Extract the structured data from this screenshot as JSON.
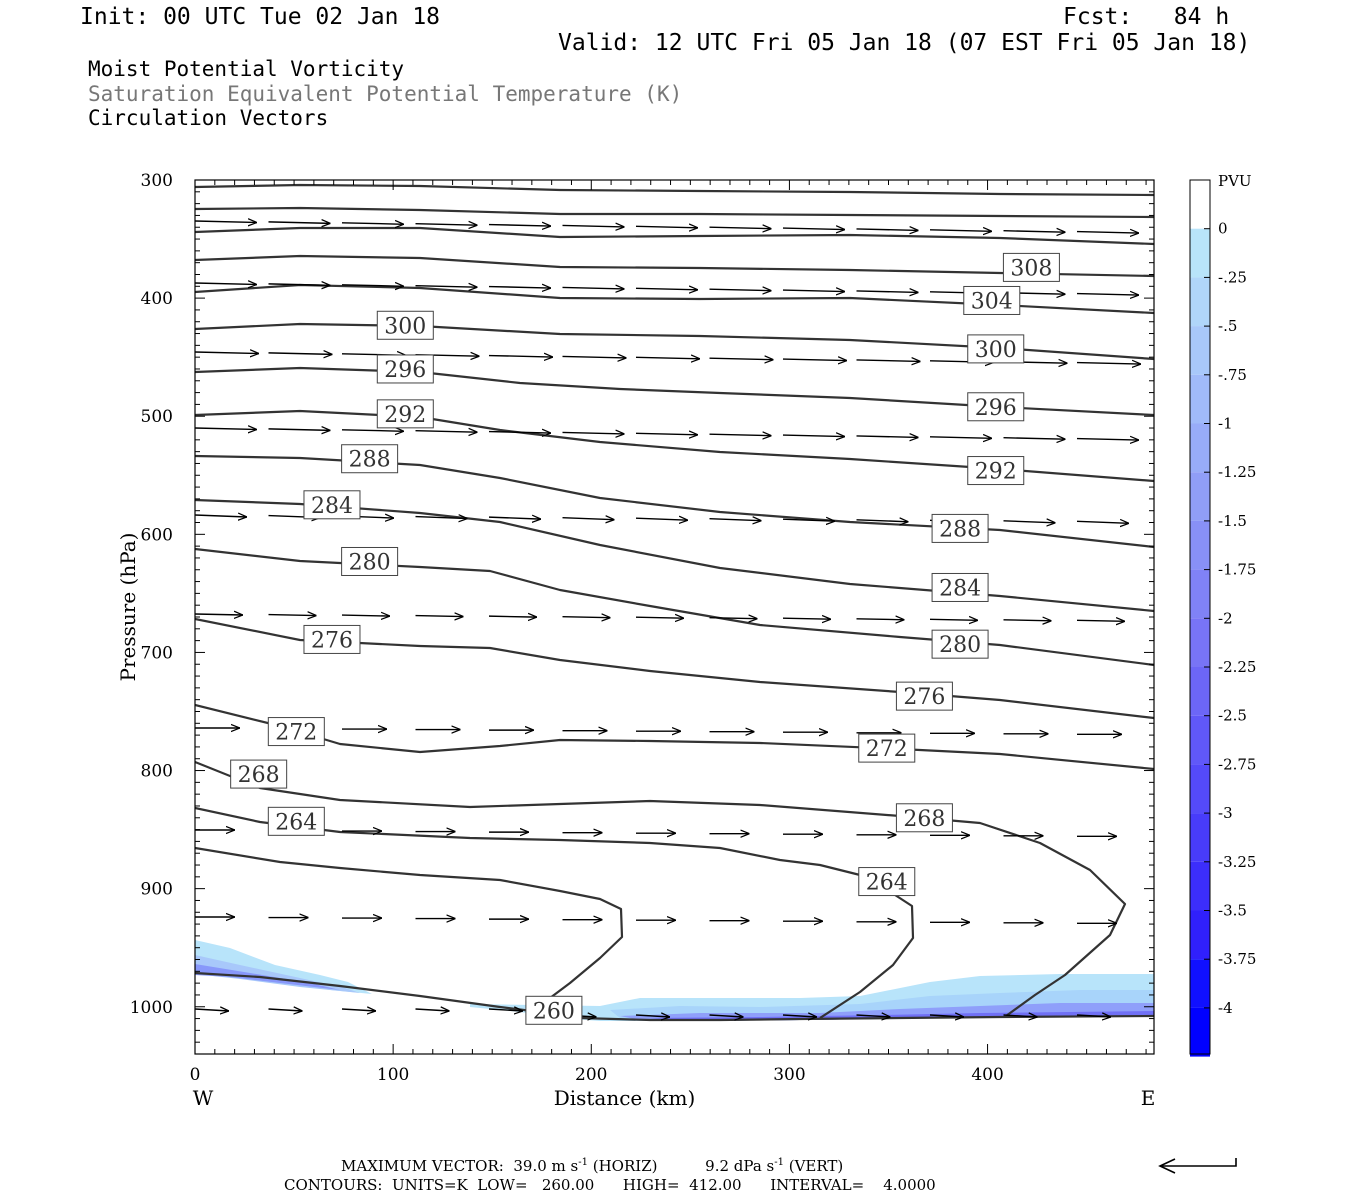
{
  "header": {
    "init": "Init: 00 UTC Tue 02 Jan 18",
    "fcst": "Fcst:   84 h",
    "valid": "Valid: 12 UTC Fri 05 Jan 18 (07 EST Fri 05 Jan 18)",
    "line1": "Moist Potential Vorticity",
    "line2": "Saturation Equivalent Potential Temperature (K)",
    "line3": "Circulation Vectors"
  },
  "footer": {
    "max_vector": "MAXIMUM VECTOR:  39.0 m s",
    "horiz": " (HORIZ)",
    "vert_val": "9.2 dPa s",
    "vert": " (VERT)",
    "contours": "CONTOURS:  UNITS=K  LOW=   260.00      HIGH=  412.00      INTERVAL=    4.0000"
  },
  "colors": {
    "contour": "#333333",
    "vector": "#000000",
    "pv_light": "#b8e4fa",
    "pv_dark": "#5050ff"
  },
  "chart_data": {
    "type": "cross-section",
    "xlabel": "Distance (km)",
    "ylabel": "Pressure (hPa)",
    "x_ticks": [
      0,
      100,
      200,
      300,
      400
    ],
    "y_ticks": [
      300,
      400,
      500,
      600,
      700,
      800,
      900,
      1000
    ],
    "xlim": [
      0,
      484
    ],
    "ylim": [
      1040,
      300
    ],
    "x_end_labels": {
      "left": "W",
      "right": "E"
    },
    "colorbar": {
      "unit": "PVU",
      "levels": [
        0,
        -0.25,
        -0.5,
        -0.75,
        -1,
        -1.25,
        -1.5,
        -1.75,
        -2,
        -2.25,
        -2.5,
        -2.75,
        -3,
        -3.25,
        -3.5,
        -3.75,
        -4
      ],
      "labels": [
        "0",
        "-.25",
        "-.5",
        "-.75",
        "-1",
        "-1.25",
        "-1.5",
        "-1.75",
        "-2",
        "-2.25",
        "-2.5",
        "-2.75",
        "-3",
        "-3.25",
        "-3.5",
        "-3.75",
        "-4"
      ]
    },
    "contour_labels": [
      {
        "value": 308,
        "x": 408,
        "p": 374
      },
      {
        "value": 304,
        "x": 388,
        "p": 402
      },
      {
        "value": 300,
        "x": 92,
        "p": 423
      },
      {
        "value": 300,
        "x": 390,
        "p": 443
      },
      {
        "value": 296,
        "x": 92,
        "p": 460
      },
      {
        "value": 296,
        "x": 390,
        "p": 492
      },
      {
        "value": 292,
        "x": 92,
        "p": 498
      },
      {
        "value": 292,
        "x": 390,
        "p": 546
      },
      {
        "value": 288,
        "x": 74,
        "p": 536
      },
      {
        "value": 288,
        "x": 372,
        "p": 595
      },
      {
        "value": 284,
        "x": 55,
        "p": 575
      },
      {
        "value": 284,
        "x": 372,
        "p": 645
      },
      {
        "value": 280,
        "x": 74,
        "p": 623
      },
      {
        "value": 280,
        "x": 372,
        "p": 693
      },
      {
        "value": 276,
        "x": 55,
        "p": 689
      },
      {
        "value": 276,
        "x": 354,
        "p": 737
      },
      {
        "value": 272,
        "x": 37,
        "p": 767
      },
      {
        "value": 272,
        "x": 335,
        "p": 781
      },
      {
        "value": 268,
        "x": 18,
        "p": 803
      },
      {
        "value": 268,
        "x": 354,
        "p": 840
      },
      {
        "value": 264,
        "x": 37,
        "p": 843
      },
      {
        "value": 264,
        "x": 335,
        "p": 894
      },
      {
        "value": 260,
        "x": 167,
        "p": 1003
      }
    ]
  }
}
